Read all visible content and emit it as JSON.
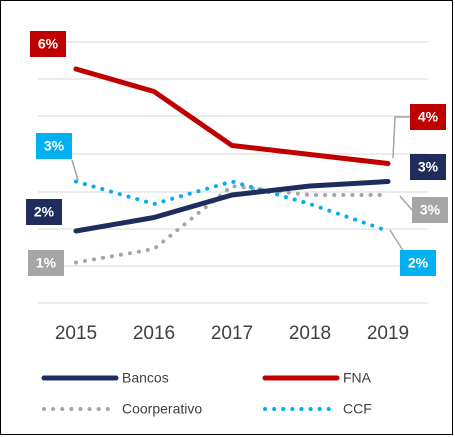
{
  "chart_data": {
    "type": "line",
    "categories": [
      "2015",
      "2016",
      "2017",
      "2018",
      "2019"
    ],
    "ylim": [
      0.4,
      6.2
    ],
    "series": [
      {
        "name": "Bancos",
        "color": "#1f2d5c",
        "style": "solid",
        "values": [
          2.0,
          2.3,
          2.8,
          3.0,
          3.1
        ],
        "value_labels": [
          "2%",
          null,
          null,
          null,
          "3%"
        ]
      },
      {
        "name": "FNA",
        "color": "#c00000",
        "style": "solid",
        "values": [
          5.6,
          5.1,
          3.9,
          3.7,
          3.5
        ],
        "value_labels": [
          "6%",
          null,
          null,
          null,
          "4%"
        ]
      },
      {
        "name": "Coorperativo",
        "color": "#a6a6a6",
        "style": "dotted",
        "values": [
          1.3,
          1.6,
          3.0,
          2.8,
          2.8
        ],
        "value_labels": [
          "1%",
          null,
          null,
          null,
          "3%"
        ]
      },
      {
        "name": "CCF",
        "color": "#00b0f0",
        "style": "dotted",
        "values": [
          3.1,
          2.6,
          3.1,
          2.6,
          2.0
        ],
        "value_labels": [
          "3%",
          null,
          null,
          null,
          "2%"
        ]
      }
    ]
  }
}
